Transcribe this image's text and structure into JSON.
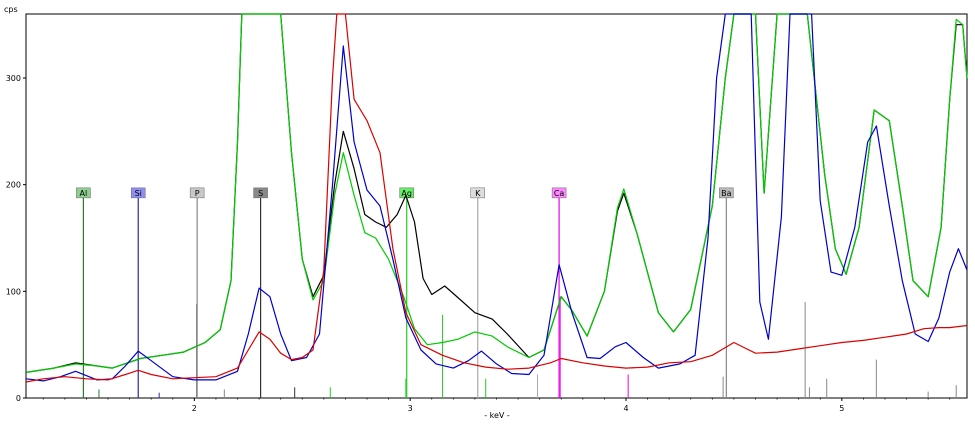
{
  "chart_data": {
    "type": "line",
    "title": "",
    "xlabel": "- keV -",
    "ylabel": "cps",
    "xlim": [
      1.22,
      5.58
    ],
    "ylim": [
      0,
      360
    ],
    "x_ticks": [
      2,
      3,
      4,
      5
    ],
    "y_ticks": [
      0,
      100,
      200,
      300
    ],
    "grid": false,
    "series": [
      {
        "color": "#000000",
        "points": [
          [
            1.22,
            24
          ],
          [
            1.35,
            28
          ],
          [
            1.45,
            33
          ],
          [
            1.55,
            30
          ],
          [
            1.62,
            28
          ],
          [
            1.75,
            37
          ],
          [
            1.85,
            40
          ],
          [
            1.95,
            43
          ],
          [
            2.05,
            52
          ],
          [
            2.12,
            64
          ],
          [
            2.17,
            110
          ],
          [
            2.2,
            240
          ],
          [
            2.22,
            360
          ],
          [
            2.4,
            360
          ],
          [
            2.45,
            230
          ],
          [
            2.5,
            130
          ],
          [
            2.55,
            95
          ],
          [
            2.6,
            115
          ],
          [
            2.65,
            200
          ],
          [
            2.69,
            250
          ],
          [
            2.74,
            215
          ],
          [
            2.79,
            172
          ],
          [
            2.84,
            165
          ],
          [
            2.89,
            160
          ],
          [
            2.94,
            172
          ],
          [
            2.98,
            190
          ],
          [
            3.02,
            165
          ],
          [
            3.06,
            112
          ],
          [
            3.1,
            97
          ],
          [
            3.16,
            105
          ],
          [
            3.2,
            98
          ],
          [
            3.3,
            80
          ],
          [
            3.38,
            74
          ],
          [
            3.45,
            60
          ],
          [
            3.55,
            38
          ],
          [
            3.62,
            45
          ],
          [
            3.7,
            95
          ],
          [
            3.75,
            82
          ],
          [
            3.82,
            58
          ],
          [
            3.9,
            100
          ],
          [
            3.96,
            175
          ],
          [
            3.99,
            192
          ],
          [
            4.05,
            155
          ],
          [
            4.15,
            80
          ],
          [
            4.22,
            62
          ],
          [
            4.3,
            83
          ],
          [
            4.4,
            180
          ],
          [
            4.46,
            300
          ],
          [
            4.5,
            360
          ],
          [
            4.6,
            360
          ],
          [
            4.64,
            192
          ],
          [
            4.7,
            360
          ],
          [
            4.8,
            360
          ],
          [
            4.84,
            360
          ],
          [
            4.92,
            210
          ],
          [
            4.97,
            140
          ],
          [
            5.02,
            116
          ],
          [
            5.08,
            160
          ],
          [
            5.15,
            270
          ],
          [
            5.22,
            260
          ],
          [
            5.28,
            180
          ],
          [
            5.33,
            110
          ],
          [
            5.4,
            95
          ],
          [
            5.46,
            160
          ],
          [
            5.5,
            280
          ],
          [
            5.53,
            350
          ],
          [
            5.56,
            350
          ],
          [
            5.58,
            300
          ]
        ]
      },
      {
        "color": "#00cc00",
        "points": [
          [
            1.22,
            24
          ],
          [
            1.35,
            28
          ],
          [
            1.45,
            32
          ],
          [
            1.55,
            30
          ],
          [
            1.62,
            28
          ],
          [
            1.75,
            37
          ],
          [
            1.85,
            40
          ],
          [
            1.95,
            43
          ],
          [
            2.05,
            52
          ],
          [
            2.12,
            64
          ],
          [
            2.17,
            110
          ],
          [
            2.2,
            240
          ],
          [
            2.22,
            360
          ],
          [
            2.4,
            360
          ],
          [
            2.45,
            230
          ],
          [
            2.5,
            130
          ],
          [
            2.55,
            92
          ],
          [
            2.6,
            110
          ],
          [
            2.65,
            190
          ],
          [
            2.69,
            230
          ],
          [
            2.74,
            190
          ],
          [
            2.79,
            155
          ],
          [
            2.84,
            150
          ],
          [
            2.9,
            130
          ],
          [
            2.97,
            95
          ],
          [
            3.02,
            65
          ],
          [
            3.08,
            50
          ],
          [
            3.15,
            52
          ],
          [
            3.22,
            55
          ],
          [
            3.3,
            62
          ],
          [
            3.38,
            58
          ],
          [
            3.45,
            48
          ],
          [
            3.55,
            38
          ],
          [
            3.62,
            45
          ],
          [
            3.7,
            95
          ],
          [
            3.75,
            82
          ],
          [
            3.82,
            58
          ],
          [
            3.9,
            100
          ],
          [
            3.96,
            178
          ],
          [
            3.99,
            196
          ],
          [
            4.05,
            155
          ],
          [
            4.15,
            80
          ],
          [
            4.22,
            62
          ],
          [
            4.3,
            83
          ],
          [
            4.4,
            180
          ],
          [
            4.46,
            300
          ],
          [
            4.5,
            360
          ],
          [
            4.6,
            360
          ],
          [
            4.64,
            192
          ],
          [
            4.7,
            360
          ],
          [
            4.8,
            360
          ],
          [
            4.84,
            360
          ],
          [
            4.92,
            210
          ],
          [
            4.97,
            140
          ],
          [
            5.02,
            116
          ],
          [
            5.08,
            160
          ],
          [
            5.15,
            270
          ],
          [
            5.22,
            260
          ],
          [
            5.28,
            180
          ],
          [
            5.33,
            110
          ],
          [
            5.4,
            95
          ],
          [
            5.46,
            160
          ],
          [
            5.5,
            280
          ],
          [
            5.53,
            355
          ],
          [
            5.56,
            350
          ],
          [
            5.58,
            300
          ]
        ]
      },
      {
        "color": "#0000cc",
        "points": [
          [
            1.22,
            18
          ],
          [
            1.3,
            16
          ],
          [
            1.38,
            20
          ],
          [
            1.45,
            25
          ],
          [
            1.55,
            17
          ],
          [
            1.62,
            18
          ],
          [
            1.68,
            30
          ],
          [
            1.74,
            44
          ],
          [
            1.8,
            35
          ],
          [
            1.9,
            20
          ],
          [
            2.0,
            17
          ],
          [
            2.1,
            17
          ],
          [
            2.2,
            25
          ],
          [
            2.25,
            60
          ],
          [
            2.3,
            103
          ],
          [
            2.35,
            95
          ],
          [
            2.4,
            60
          ],
          [
            2.45,
            35
          ],
          [
            2.52,
            38
          ],
          [
            2.58,
            60
          ],
          [
            2.64,
            200
          ],
          [
            2.69,
            330
          ],
          [
            2.74,
            240
          ],
          [
            2.8,
            195
          ],
          [
            2.86,
            180
          ],
          [
            2.92,
            130
          ],
          [
            2.98,
            75
          ],
          [
            3.05,
            45
          ],
          [
            3.12,
            32
          ],
          [
            3.2,
            28
          ],
          [
            3.27,
            35
          ],
          [
            3.33,
            44
          ],
          [
            3.4,
            32
          ],
          [
            3.47,
            23
          ],
          [
            3.55,
            22
          ],
          [
            3.62,
            40
          ],
          [
            3.69,
            125
          ],
          [
            3.75,
            80
          ],
          [
            3.82,
            38
          ],
          [
            3.88,
            37
          ],
          [
            3.95,
            48
          ],
          [
            4.0,
            52
          ],
          [
            4.08,
            38
          ],
          [
            4.15,
            28
          ],
          [
            4.25,
            32
          ],
          [
            4.32,
            40
          ],
          [
            4.38,
            150
          ],
          [
            4.42,
            300
          ],
          [
            4.46,
            360
          ],
          [
            4.58,
            360
          ],
          [
            4.62,
            90
          ],
          [
            4.66,
            55
          ],
          [
            4.72,
            170
          ],
          [
            4.76,
            360
          ],
          [
            4.86,
            360
          ],
          [
            4.9,
            185
          ],
          [
            4.95,
            118
          ],
          [
            5.0,
            115
          ],
          [
            5.06,
            160
          ],
          [
            5.12,
            240
          ],
          [
            5.16,
            255
          ],
          [
            5.22,
            180
          ],
          [
            5.28,
            110
          ],
          [
            5.34,
            60
          ],
          [
            5.4,
            53
          ],
          [
            5.45,
            75
          ],
          [
            5.5,
            118
          ],
          [
            5.54,
            140
          ],
          [
            5.58,
            120
          ]
        ]
      },
      {
        "color": "#dd0000",
        "points": [
          [
            1.22,
            15
          ],
          [
            1.3,
            18
          ],
          [
            1.4,
            20
          ],
          [
            1.5,
            18
          ],
          [
            1.6,
            17
          ],
          [
            1.68,
            22
          ],
          [
            1.74,
            26
          ],
          [
            1.8,
            22
          ],
          [
            1.9,
            18
          ],
          [
            2.0,
            19
          ],
          [
            2.1,
            20
          ],
          [
            2.2,
            28
          ],
          [
            2.25,
            45
          ],
          [
            2.3,
            62
          ],
          [
            2.35,
            55
          ],
          [
            2.4,
            42
          ],
          [
            2.45,
            36
          ],
          [
            2.5,
            38
          ],
          [
            2.55,
            45
          ],
          [
            2.6,
            120
          ],
          [
            2.64,
            300
          ],
          [
            2.66,
            360
          ],
          [
            2.7,
            360
          ],
          [
            2.74,
            280
          ],
          [
            2.8,
            260
          ],
          [
            2.86,
            230
          ],
          [
            2.92,
            140
          ],
          [
            2.98,
            80
          ],
          [
            3.05,
            50
          ],
          [
            3.15,
            40
          ],
          [
            3.25,
            33
          ],
          [
            3.35,
            29
          ],
          [
            3.45,
            27
          ],
          [
            3.55,
            28
          ],
          [
            3.65,
            33
          ],
          [
            3.7,
            37
          ],
          [
            3.8,
            33
          ],
          [
            3.9,
            30
          ],
          [
            4.0,
            28
          ],
          [
            4.1,
            29
          ],
          [
            4.2,
            33
          ],
          [
            4.3,
            34
          ],
          [
            4.4,
            40
          ],
          [
            4.45,
            46
          ],
          [
            4.5,
            52
          ],
          [
            4.55,
            47
          ],
          [
            4.6,
            42
          ],
          [
            4.7,
            43
          ],
          [
            4.8,
            46
          ],
          [
            4.9,
            49
          ],
          [
            5.0,
            52
          ],
          [
            5.1,
            54
          ],
          [
            5.2,
            57
          ],
          [
            5.3,
            60
          ],
          [
            5.38,
            65
          ],
          [
            5.45,
            66
          ],
          [
            5.5,
            66
          ],
          [
            5.58,
            68
          ]
        ]
      }
    ],
    "element_markers": [
      {
        "label": "Al",
        "x": 1.486,
        "height": 182,
        "color": "#2a7a2a",
        "label_bg": "#8fd08f"
      },
      {
        "label": "Si",
        "x": 1.74,
        "height": 182,
        "color": "#2a2aaa",
        "label_bg": "#8f8ff0"
      },
      {
        "label": "P",
        "x": 2.013,
        "height": 182,
        "color": "#888888",
        "label_bg": "#c8c8c8"
      },
      {
        "label": "S",
        "x": 2.307,
        "height": 182,
        "color": "#333333",
        "label_bg": "#888888"
      },
      {
        "label": "Ag",
        "x": 2.984,
        "height": 182,
        "color": "#22cc22",
        "label_bg": "#66ee66"
      },
      {
        "label": "K",
        "x": 3.313,
        "height": 182,
        "color": "#aaaaaa",
        "label_bg": "#dddddd"
      },
      {
        "label": "Ca",
        "x": 3.69,
        "height": 182,
        "color": "#ee00ee",
        "label_bg": "#ff88ff"
      },
      {
        "label": "Ba",
        "x": 4.465,
        "height": 182,
        "color": "#888888",
        "label_bg": "#bbbbbb"
      }
    ],
    "marker_lines": [
      {
        "x": 1.558,
        "height": 8,
        "color": "#2a7a2a"
      },
      {
        "x": 1.837,
        "height": 5,
        "color": "#2a2aaa"
      },
      {
        "x": 2.139,
        "height": 8,
        "color": "#888888"
      },
      {
        "x": 2.465,
        "height": 10,
        "color": "#333333"
      },
      {
        "x": 2.01,
        "height": 88,
        "color": "#888888"
      },
      {
        "x": 2.63,
        "height": 10,
        "color": "#22cc22"
      },
      {
        "x": 2.98,
        "height": 18,
        "color": "#22cc22"
      },
      {
        "x": 3.15,
        "height": 78,
        "color": "#22cc22"
      },
      {
        "x": 3.35,
        "height": 18,
        "color": "#22cc22"
      },
      {
        "x": 3.59,
        "height": 22,
        "color": "#aaaaaa"
      },
      {
        "x": 3.695,
        "height": 95,
        "color": "#ee00ee"
      },
      {
        "x": 4.01,
        "height": 22,
        "color": "#ee00ee"
      },
      {
        "x": 4.45,
        "height": 20,
        "color": "#888888"
      },
      {
        "x": 4.83,
        "height": 90,
        "color": "#888888"
      },
      {
        "x": 4.85,
        "height": 10,
        "color": "#888888"
      },
      {
        "x": 4.93,
        "height": 18,
        "color": "#888888"
      },
      {
        "x": 5.16,
        "height": 36,
        "color": "#888888"
      },
      {
        "x": 5.4,
        "height": 6,
        "color": "#888888"
      },
      {
        "x": 5.53,
        "height": 12,
        "color": "#888888"
      }
    ]
  }
}
